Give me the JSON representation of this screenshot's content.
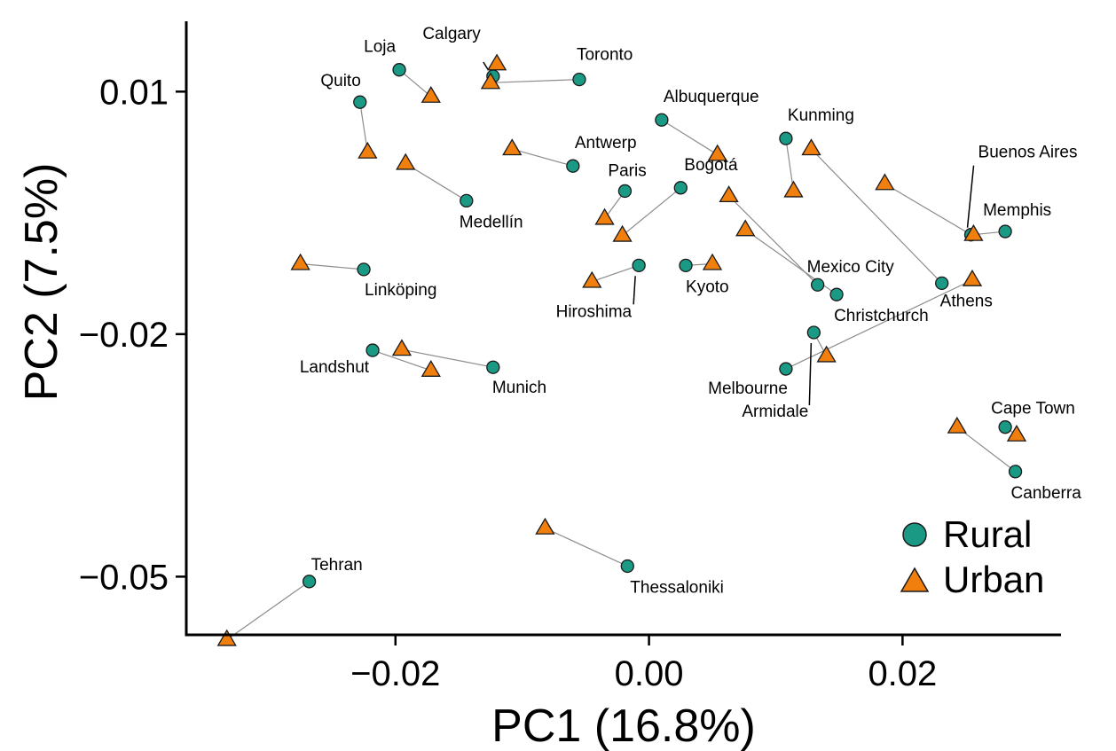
{
  "colors": {
    "rural": "#1a9a84",
    "urban": "#f07f0e",
    "pair_line": "#8c8c8c",
    "outline": "#1a1a1a"
  },
  "legend": {
    "position": "bottom-right",
    "items": [
      {
        "label": "Rural",
        "marker": "circle"
      },
      {
        "label": "Urban",
        "marker": "triangle"
      }
    ]
  },
  "chart_data": {
    "type": "scatter",
    "title": "",
    "xlabel": "PC1 (16.8%)",
    "ylabel": "PC2 (7.5%)",
    "xlim": [
      -0.0365,
      0.0325
    ],
    "ylim": [
      -0.0572,
      0.0187
    ],
    "xticks": [
      -0.02,
      0.0,
      0.02
    ],
    "xtick_labels": [
      "−0.02",
      "0.00",
      "0.02"
    ],
    "yticks": [
      0.01,
      -0.02,
      -0.05
    ],
    "ytick_labels": [
      "0.01",
      "−0.02",
      "−0.05"
    ],
    "grid": false,
    "series": [
      {
        "name": "Rural",
        "marker": "circle"
      },
      {
        "name": "Urban",
        "marker": "triangle"
      }
    ],
    "cities": [
      {
        "name": "Loja",
        "rural": [
          -0.0197,
          0.0127
        ],
        "urban": [
          -0.0172,
          0.0094
        ]
      },
      {
        "name": "Calgary",
        "rural": [
          -0.0123,
          0.0119
        ],
        "urban": [
          -0.012,
          0.0134
        ]
      },
      {
        "name": "Toronto",
        "rural": [
          -0.0055,
          0.0115
        ],
        "urban": [
          -0.0125,
          0.0111
        ]
      },
      {
        "name": "Quito",
        "rural": [
          -0.0228,
          0.0087
        ],
        "urban": [
          -0.0222,
          0.0025
        ]
      },
      {
        "name": "Medellín",
        "rural": [
          -0.0144,
          -0.0035
        ],
        "urban": [
          -0.0192,
          0.0011
        ]
      },
      {
        "name": "Antwerp",
        "rural": [
          -0.006,
          0.0008
        ],
        "urban": [
          -0.0108,
          0.0029
        ]
      },
      {
        "name": "Albuquerque",
        "rural": [
          0.001,
          0.0065
        ],
        "urban": [
          0.0054,
          0.0022
        ]
      },
      {
        "name": "Paris",
        "rural": [
          -0.0019,
          -0.0023
        ],
        "urban": [
          -0.0035,
          -0.0057
        ]
      },
      {
        "name": "Bogotá",
        "rural": [
          0.0025,
          -0.0019
        ],
        "urban": [
          -0.0021,
          -0.0078
        ]
      },
      {
        "name": "Kunming",
        "rural": [
          0.0108,
          0.0042
        ],
        "urban": [
          0.0114,
          -0.0023
        ]
      },
      {
        "name": "Buenos Aires",
        "rural": [
          0.0254,
          -0.0077
        ],
        "urban": [
          0.0186,
          -0.0014
        ]
      },
      {
        "name": "Memphis",
        "rural": [
          0.0281,
          -0.0073
        ],
        "urban": [
          0.0256,
          -0.0077
        ]
      },
      {
        "name": "Linköping",
        "rural": [
          -0.0225,
          -0.012
        ],
        "urban": [
          -0.0275,
          -0.0113
        ]
      },
      {
        "name": "Hiroshima",
        "rural": [
          -0.0008,
          -0.0115
        ],
        "urban": [
          -0.0045,
          -0.0135
        ]
      },
      {
        "name": "Kyoto",
        "rural": [
          0.0029,
          -0.0115
        ],
        "urban": [
          0.005,
          -0.0113
        ]
      },
      {
        "name": "Mexico City",
        "rural": [
          0.0133,
          -0.0139
        ],
        "urban": [
          0.0063,
          -0.0029
        ]
      },
      {
        "name": "Christchurch",
        "rural": [
          0.0148,
          -0.0151
        ],
        "urban": [
          0.0076,
          -0.0071
        ]
      },
      {
        "name": "Athens",
        "rural": [
          0.0231,
          -0.0137
        ],
        "urban": [
          0.0128,
          0.0029
        ]
      },
      {
        "name": "Armidale",
        "rural": [
          0.013,
          -0.0198
        ],
        "urban": [
          0.014,
          -0.0227
        ]
      },
      {
        "name": "Melbourne",
        "rural": [
          0.0108,
          -0.0243
        ],
        "urban": [
          0.0255,
          -0.0133
        ]
      },
      {
        "name": "Landshut",
        "rural": [
          -0.0218,
          -0.022
        ],
        "urban": [
          -0.0172,
          -0.0245
        ]
      },
      {
        "name": "Munich",
        "rural": [
          -0.0123,
          -0.0241
        ],
        "urban": [
          -0.0195,
          -0.0219
        ]
      },
      {
        "name": "Cape Town",
        "rural": [
          0.0281,
          -0.0315
        ],
        "urban": [
          0.029,
          -0.0325
        ]
      },
      {
        "name": "Canberra",
        "rural": [
          0.0289,
          -0.037
        ],
        "urban": [
          0.0243,
          -0.0315
        ]
      },
      {
        "name": "Tehran",
        "rural": [
          -0.0268,
          -0.0506
        ],
        "urban": [
          -0.0333,
          -0.0578
        ]
      },
      {
        "name": "Thessaloniki",
        "rural": [
          -0.0017,
          -0.0487
        ],
        "urban": [
          -0.0082,
          -0.044
        ]
      }
    ]
  }
}
